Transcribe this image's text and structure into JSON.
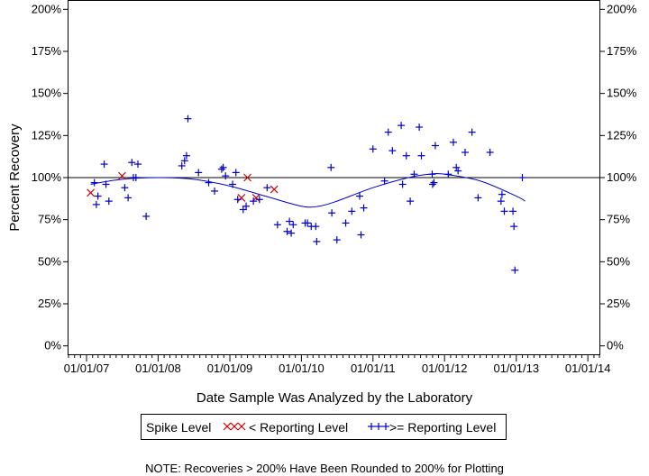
{
  "chart_data": {
    "type": "scatter",
    "title": "",
    "xlabel": "Date Sample Was Analyzed by the Laboratory",
    "ylabel": "Percent Recovery",
    "x_ticks": [
      "01/01/07",
      "01/01/08",
      "01/01/09",
      "01/01/10",
      "01/01/11",
      "01/01/12",
      "01/01/13",
      "01/01/14"
    ],
    "y_ticks": [
      "0%",
      "25%",
      "50%",
      "75%",
      "100%",
      "125%",
      "150%",
      "175%",
      "200%"
    ],
    "xlim": [
      "2006-10-01",
      "2014-03-01"
    ],
    "ylim": [
      -5,
      205
    ],
    "reference_line": 100,
    "grid": false,
    "legend": {
      "title": "Spike Level",
      "placement": "bottom",
      "entries": [
        {
          "label": "< Reporting Level",
          "marker": "x",
          "color": "#cc0000"
        },
        {
          "label": ">= Reporting Level",
          "marker": "+",
          "color": "#0000cc"
        }
      ]
    },
    "series": [
      {
        "name": "< Reporting Level",
        "marker": "x",
        "color": "#cc0000",
        "points": [
          {
            "x": "2007-01-22",
            "y": 91
          },
          {
            "x": "2007-07-01",
            "y": 101
          },
          {
            "x": "2009-03-01",
            "y": 88
          },
          {
            "x": "2009-04-01",
            "y": 100
          },
          {
            "x": "2009-05-15",
            "y": 88
          },
          {
            "x": "2009-08-15",
            "y": 93
          }
        ]
      },
      {
        "name": ">= Reporting Level",
        "marker": "+",
        "color": "#0000cc",
        "points": [
          {
            "x": "2007-02-10",
            "y": 97
          },
          {
            "x": "2007-02-20",
            "y": 84
          },
          {
            "x": "2007-02-28",
            "y": 89
          },
          {
            "x": "2007-04-01",
            "y": 108
          },
          {
            "x": "2007-04-10",
            "y": 96
          },
          {
            "x": "2007-04-25",
            "y": 86
          },
          {
            "x": "2007-07-15",
            "y": 94
          },
          {
            "x": "2007-08-01",
            "y": 88
          },
          {
            "x": "2007-08-20",
            "y": 109
          },
          {
            "x": "2007-08-28",
            "y": 100
          },
          {
            "x": "2007-09-10",
            "y": 100
          },
          {
            "x": "2007-09-20",
            "y": 108
          },
          {
            "x": "2007-11-01",
            "y": 77
          },
          {
            "x": "2008-05-01",
            "y": 107
          },
          {
            "x": "2008-05-15",
            "y": 110
          },
          {
            "x": "2008-05-25",
            "y": 113
          },
          {
            "x": "2008-06-01",
            "y": 135
          },
          {
            "x": "2008-07-25",
            "y": 103
          },
          {
            "x": "2008-09-15",
            "y": 97
          },
          {
            "x": "2008-10-15",
            "y": 92
          },
          {
            "x": "2008-11-20",
            "y": 105
          },
          {
            "x": "2008-11-28",
            "y": 106
          },
          {
            "x": "2008-12-10",
            "y": 101
          },
          {
            "x": "2009-01-15",
            "y": 96
          },
          {
            "x": "2009-02-01",
            "y": 103
          },
          {
            "x": "2009-02-10",
            "y": 87
          },
          {
            "x": "2009-03-10",
            "y": 81
          },
          {
            "x": "2009-03-25",
            "y": 83
          },
          {
            "x": "2009-05-01",
            "y": 86
          },
          {
            "x": "2009-06-01",
            "y": 87
          },
          {
            "x": "2009-07-10",
            "y": 94
          },
          {
            "x": "2009-09-01",
            "y": 72
          },
          {
            "x": "2009-10-20",
            "y": 68
          },
          {
            "x": "2009-11-01",
            "y": 74
          },
          {
            "x": "2009-11-10",
            "y": 67
          },
          {
            "x": "2009-11-20",
            "y": 72
          },
          {
            "x": "2010-01-20",
            "y": 73
          },
          {
            "x": "2010-02-01",
            "y": 73
          },
          {
            "x": "2010-02-20",
            "y": 71
          },
          {
            "x": "2010-03-15",
            "y": 71
          },
          {
            "x": "2010-03-20",
            "y": 62
          },
          {
            "x": "2010-06-01",
            "y": 106
          },
          {
            "x": "2010-06-05",
            "y": 79
          },
          {
            "x": "2010-07-01",
            "y": 63
          },
          {
            "x": "2010-08-15",
            "y": 73
          },
          {
            "x": "2010-09-15",
            "y": 80
          },
          {
            "x": "2010-10-25",
            "y": 89
          },
          {
            "x": "2010-11-01",
            "y": 66
          },
          {
            "x": "2010-11-15",
            "y": 82
          },
          {
            "x": "2011-01-01",
            "y": 117
          },
          {
            "x": "2011-03-01",
            "y": 98
          },
          {
            "x": "2011-03-20",
            "y": 127
          },
          {
            "x": "2011-04-10",
            "y": 116
          },
          {
            "x": "2011-05-25",
            "y": 131
          },
          {
            "x": "2011-06-01",
            "y": 96
          },
          {
            "x": "2011-06-20",
            "y": 113
          },
          {
            "x": "2011-07-10",
            "y": 86
          },
          {
            "x": "2011-07-30",
            "y": 102
          },
          {
            "x": "2011-08-25",
            "y": 130
          },
          {
            "x": "2011-09-05",
            "y": 113
          },
          {
            "x": "2011-10-30",
            "y": 102
          },
          {
            "x": "2011-11-01",
            "y": 96
          },
          {
            "x": "2011-11-08",
            "y": 97
          },
          {
            "x": "2011-11-15",
            "y": 119
          },
          {
            "x": "2012-01-20",
            "y": 102
          },
          {
            "x": "2012-02-15",
            "y": 121
          },
          {
            "x": "2012-03-01",
            "y": 106
          },
          {
            "x": "2012-03-10",
            "y": 104
          },
          {
            "x": "2012-04-15",
            "y": 115
          },
          {
            "x": "2012-05-20",
            "y": 127
          },
          {
            "x": "2012-06-20",
            "y": 88
          },
          {
            "x": "2012-08-20",
            "y": 115
          },
          {
            "x": "2012-10-15",
            "y": 86
          },
          {
            "x": "2012-10-20",
            "y": 90
          },
          {
            "x": "2012-11-01",
            "y": 80
          },
          {
            "x": "2012-12-15",
            "y": 80
          },
          {
            "x": "2012-12-20",
            "y": 71
          },
          {
            "x": "2012-12-25",
            "y": 45
          },
          {
            "x": "2013-02-01",
            "y": 100
          }
        ]
      }
    ],
    "trend_line": {
      "color": "#0000cc",
      "points": [
        {
          "x": "2007-01-22",
          "y": 96
        },
        {
          "x": "2007-07-01",
          "y": 99
        },
        {
          "x": "2008-01-01",
          "y": 100
        },
        {
          "x": "2008-07-01",
          "y": 99
        },
        {
          "x": "2009-01-01",
          "y": 95
        },
        {
          "x": "2009-07-01",
          "y": 89
        },
        {
          "x": "2010-01-01",
          "y": 83
        },
        {
          "x": "2010-04-01",
          "y": 83
        },
        {
          "x": "2010-07-01",
          "y": 86
        },
        {
          "x": "2011-01-01",
          "y": 94
        },
        {
          "x": "2011-07-01",
          "y": 100
        },
        {
          "x": "2011-10-15",
          "y": 102
        },
        {
          "x": "2012-01-01",
          "y": 102
        },
        {
          "x": "2012-07-01",
          "y": 98
        },
        {
          "x": "2013-01-01",
          "y": 89
        },
        {
          "x": "2013-02-15",
          "y": 86
        }
      ]
    }
  },
  "note": "NOTE: Recoveries > 200% Have Been Rounded to 200% for Plotting"
}
